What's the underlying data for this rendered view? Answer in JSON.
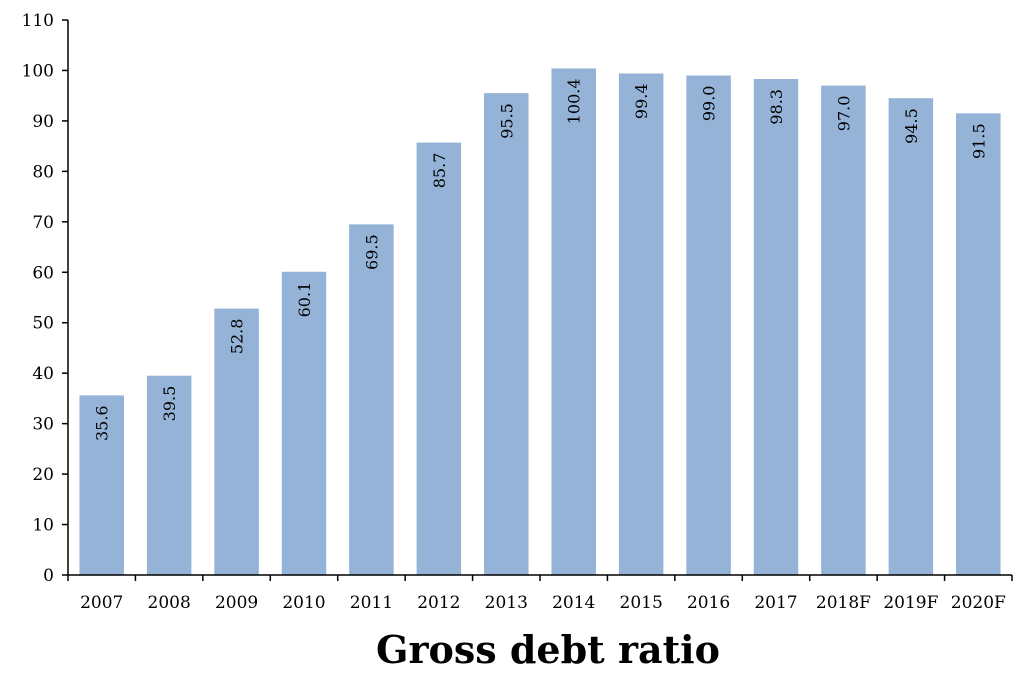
{
  "chart_data": {
    "type": "bar",
    "title": "Gross debt ratio",
    "xlabel": "",
    "ylabel": "",
    "categories": [
      "2007",
      "2008",
      "2009",
      "2010",
      "2011",
      "2012",
      "2013",
      "2014",
      "2015",
      "2016",
      "2017",
      "2018F",
      "2019F",
      "2020F"
    ],
    "values": [
      35.6,
      39.5,
      52.8,
      60.1,
      69.5,
      85.7,
      95.5,
      100.4,
      99.4,
      99.0,
      98.3,
      97.0,
      94.5,
      91.5
    ],
    "data_labels": [
      "35.6",
      "39.5",
      "52.8",
      "60.1",
      "69.5",
      "85.7",
      "95.5",
      "100.4",
      "99.4",
      "99.0",
      "98.3",
      "97.0",
      "94.5",
      "91.5"
    ],
    "ylim": [
      0,
      110
    ],
    "yticks": [
      "0",
      "10",
      "20",
      "30",
      "40",
      "50",
      "60",
      "70",
      "80",
      "90",
      "100",
      "110"
    ],
    "grid": false,
    "legend": "none",
    "colors": {
      "bar": "#95b3d7",
      "axis": "#000000"
    }
  }
}
